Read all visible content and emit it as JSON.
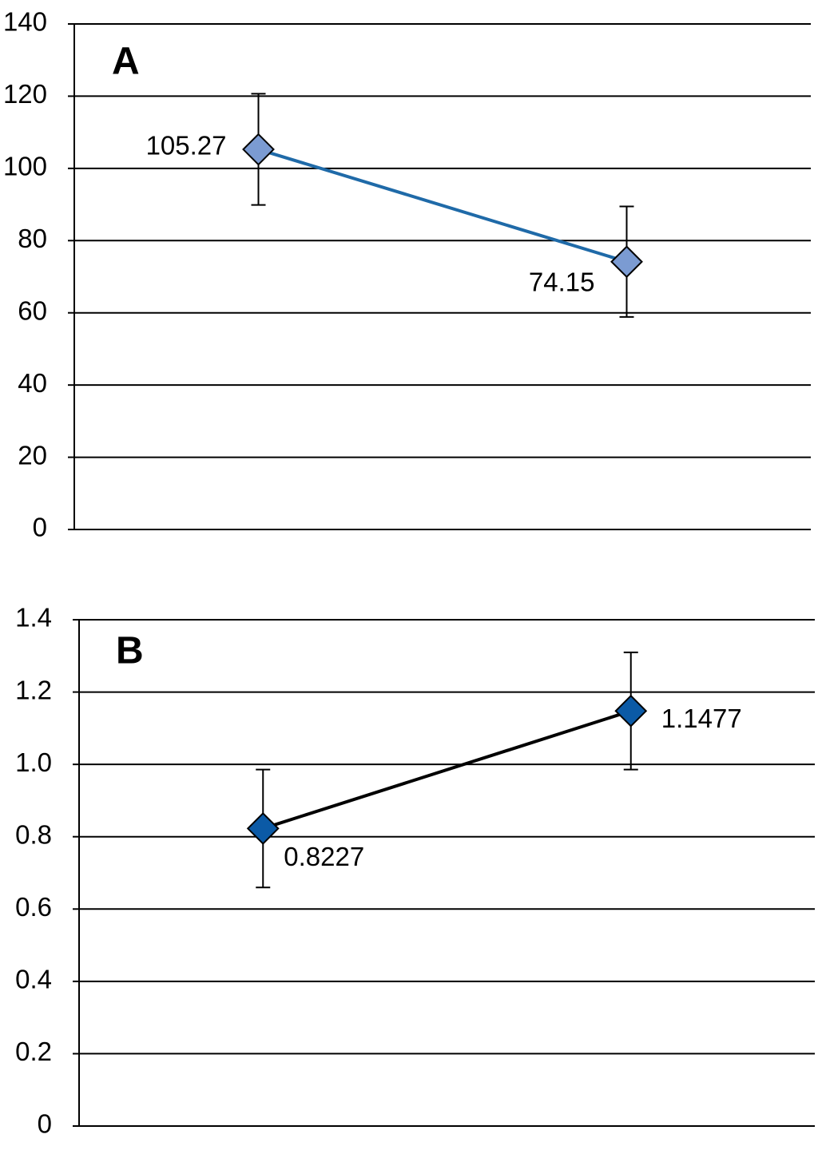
{
  "chart_data": [
    {
      "type": "line",
      "label": "A",
      "categories": [
        null,
        null
      ],
      "series": [
        {
          "color": "#1f6aa8",
          "marker_color": "#7b9bd2",
          "values": [
            105.27,
            74.15
          ],
          "errors": [
            15.4,
            15.3
          ]
        }
      ],
      "ylim": [
        0,
        140
      ],
      "yticks": [
        0,
        20,
        40,
        60,
        80,
        100,
        120,
        140
      ],
      "grid": true
    },
    {
      "type": "line",
      "label": "B",
      "categories": [
        null,
        null
      ],
      "series": [
        {
          "color": "#000000",
          "marker_color": "#0b5aa6",
          "values": [
            0.8227,
            1.1477
          ],
          "errors": [
            0.163,
            0.162
          ]
        }
      ],
      "ylim": [
        0,
        1.4
      ],
      "yticks": [
        0,
        0.2,
        0.4,
        0.6,
        {
          "value": 0.8,
          "label": "0.8"
        },
        {
          "value": 1,
          "label": "1.0"
        },
        1.2,
        1.4
      ],
      "grid": true
    }
  ]
}
